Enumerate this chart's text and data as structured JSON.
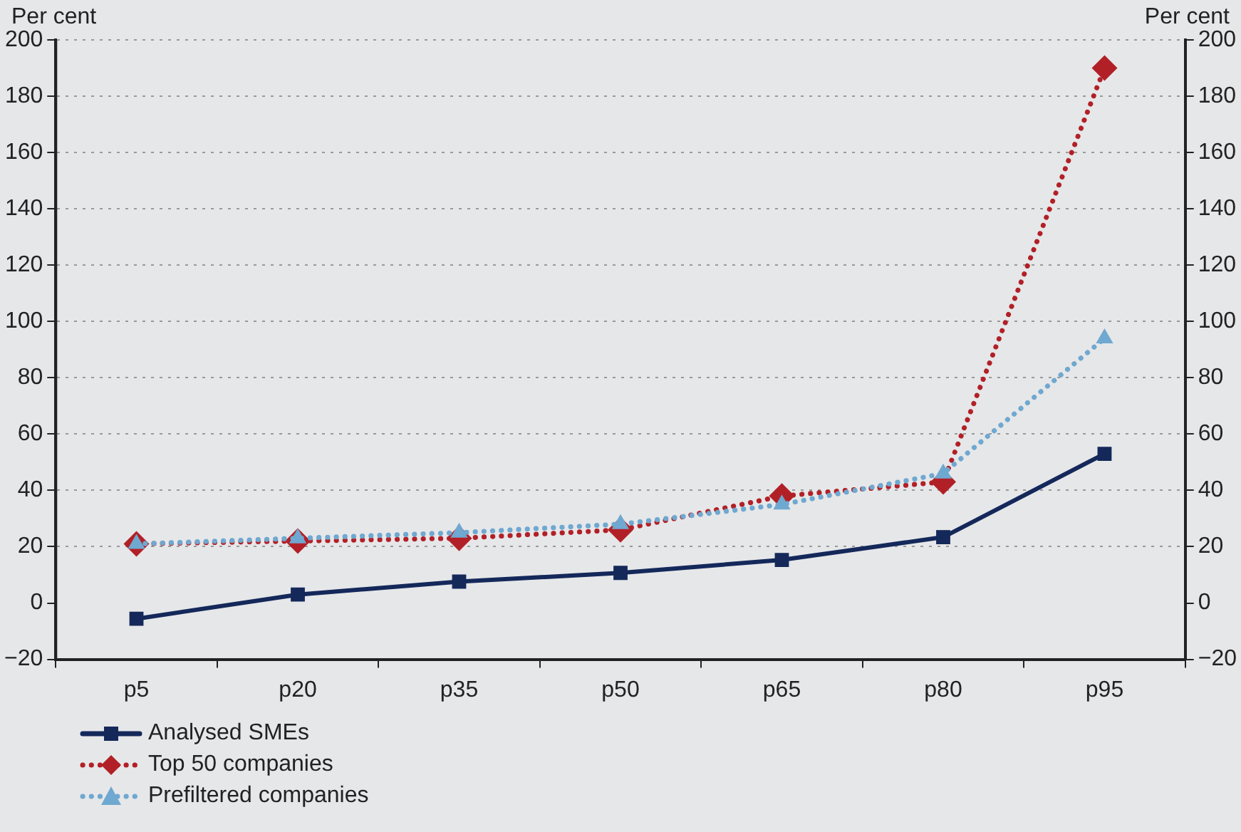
{
  "chart_data": {
    "type": "line",
    "ylabel": "Per cent",
    "y2label": "Per cent",
    "categories": [
      "p5",
      "p20",
      "p35",
      "p50",
      "p65",
      "p80",
      "p95"
    ],
    "series": [
      {
        "name": "Analysed SMEs",
        "color": "#14285a",
        "marker": "square",
        "line_style": "solid",
        "values": [
          -5.6,
          3,
          7.6,
          10.7,
          15.3,
          23.4,
          53
        ]
      },
      {
        "name": "Top 50 companies",
        "color": "#b22027",
        "marker": "diamond",
        "line_style": "dotted",
        "values": [
          21,
          22,
          23,
          26,
          38,
          43,
          190
        ]
      },
      {
        "name": "Prefiltered companies",
        "color": "#6fa8d0",
        "marker": "triangle",
        "line_style": "dotted",
        "values": [
          21,
          23,
          25,
          28,
          35,
          46,
          94
        ]
      }
    ],
    "ylim": [
      -20,
      200
    ],
    "yticks": [
      -20,
      0,
      20,
      40,
      60,
      80,
      100,
      120,
      140,
      160,
      180,
      200
    ],
    "y2lim": [
      -20,
      200
    ],
    "y2ticks": [
      -20,
      0,
      20,
      40,
      60,
      80,
      100,
      120,
      140,
      160,
      180,
      200
    ],
    "grid": "y",
    "legend": "bottom left"
  }
}
